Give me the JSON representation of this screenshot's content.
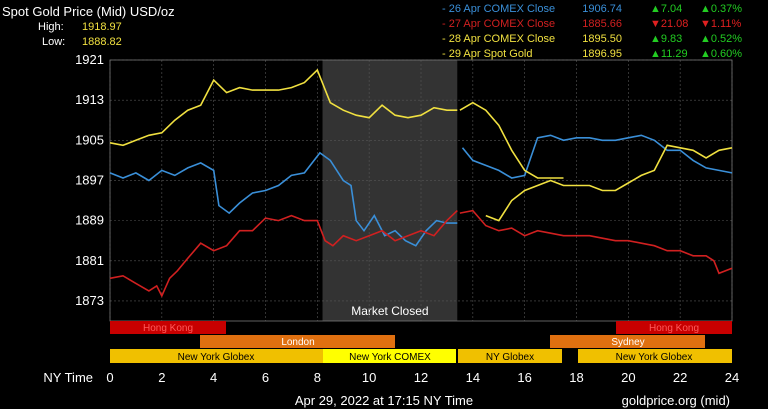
{
  "header": {
    "title": "Spot Gold Price (Mid) USD/oz",
    "high_label": "High:",
    "high_value": "1918.97",
    "low_label": "Low:",
    "low_value": "1888.82"
  },
  "legend": [
    {
      "label": "- 26 Apr COMEX Close",
      "value": "1906.74",
      "change": "7.04",
      "pct": "0.37%",
      "dir": "up",
      "color": "#3a8fd8"
    },
    {
      "label": "- 27 Apr COMEX Close",
      "value": "1885.66",
      "change": "21.08",
      "pct": "1.11%",
      "dir": "down",
      "color": "#d02020"
    },
    {
      "label": "- 28 Apr COMEX Close",
      "value": "1895.50",
      "change": "9.83",
      "pct": "0.52%",
      "dir": "up",
      "color": "#f0e040"
    },
    {
      "label": "- 29 Apr Spot Gold",
      "value": "1896.95",
      "change": "11.29",
      "pct": "0.60%",
      "dir": "up",
      "color": "#f0e040"
    }
  ],
  "sessions": {
    "hong_kong_1": "Hong Kong",
    "hong_kong_2": "Hong Kong",
    "london": "London",
    "sydney": "Sydney",
    "ny_globex_1": "New York Globex",
    "ny_comex": "New York COMEX",
    "ny_globex_2": "NY Globex",
    "ny_globex_3": "New York Globex"
  },
  "market_closed": "Market Closed",
  "footer": {
    "timestamp": "Apr 29, 2022 at 17:15 NY Time",
    "source": "goldprice.org (mid)"
  },
  "colors": {
    "up": "#22cc22",
    "down": "#e02020",
    "closed_band": "#333333",
    "grid": "#555555"
  },
  "chart_data": {
    "type": "line",
    "xlabel": "NY Time",
    "x_ticks": [
      0,
      2,
      4,
      6,
      8,
      10,
      12,
      14,
      16,
      18,
      20,
      22,
      24
    ],
    "y_ticks": [
      1873,
      1881,
      1889,
      1897,
      1905,
      1913,
      1921
    ],
    "xlim": [
      0,
      24
    ],
    "ylim": [
      1869,
      1921
    ],
    "market_closed_range": [
      8.2,
      13.4
    ],
    "series": [
      {
        "name": "26 Apr COMEX Close",
        "color": "#3a8fd8",
        "segments": [
          [
            [
              0,
              1898.5
            ],
            [
              0.5,
              1897.5
            ],
            [
              1,
              1898.5
            ],
            [
              1.5,
              1897
            ],
            [
              2,
              1899
            ],
            [
              2.5,
              1898
            ],
            [
              3,
              1899.5
            ],
            [
              3.5,
              1900.5
            ],
            [
              4,
              1899
            ],
            [
              4.2,
              1892
            ],
            [
              4.6,
              1890.5
            ],
            [
              5,
              1892.5
            ],
            [
              5.5,
              1894.5
            ],
            [
              6,
              1895
            ],
            [
              6.5,
              1896
            ],
            [
              7,
              1898
            ],
            [
              7.5,
              1898.5
            ],
            [
              8.1,
              1902.5
            ],
            [
              8.5,
              1901
            ],
            [
              9,
              1897
            ],
            [
              9.3,
              1896
            ],
            [
              9.5,
              1889
            ],
            [
              9.8,
              1887
            ],
            [
              10.2,
              1890
            ],
            [
              10.6,
              1886
            ],
            [
              11,
              1887
            ],
            [
              11.4,
              1885
            ],
            [
              11.8,
              1884
            ],
            [
              12.2,
              1887
            ],
            [
              12.6,
              1889
            ],
            [
              13,
              1888.5
            ],
            [
              13.4,
              1888.5
            ]
          ],
          [
            [
              13.6,
              1903.5
            ],
            [
              14,
              1901
            ],
            [
              14.5,
              1900
            ],
            [
              15,
              1899
            ],
            [
              15.5,
              1897.5
            ],
            [
              16,
              1898
            ],
            [
              16.2,
              1901
            ],
            [
              16.5,
              1905.5
            ],
            [
              17,
              1906
            ],
            [
              17.5,
              1905
            ],
            [
              18,
              1905.5
            ],
            [
              18.5,
              1905.5
            ],
            [
              19,
              1905
            ],
            [
              19.5,
              1905
            ],
            [
              20,
              1905.5
            ],
            [
              20.5,
              1906
            ],
            [
              21,
              1905
            ],
            [
              21.5,
              1903
            ],
            [
              22,
              1903
            ],
            [
              22.5,
              1901
            ],
            [
              23,
              1899.5
            ],
            [
              23.5,
              1899
            ],
            [
              24,
              1898.5
            ]
          ]
        ]
      },
      {
        "name": "27 Apr COMEX Close",
        "color": "#d02020",
        "segments": [
          [
            [
              0,
              1877.5
            ],
            [
              0.5,
              1878
            ],
            [
              1,
              1876.5
            ],
            [
              1.5,
              1875
            ],
            [
              1.8,
              1876
            ],
            [
              2,
              1874
            ],
            [
              2.3,
              1877.5
            ],
            [
              2.6,
              1879
            ],
            [
              3,
              1881.5
            ],
            [
              3.5,
              1884.5
            ],
            [
              4,
              1883
            ],
            [
              4.5,
              1884
            ],
            [
              5,
              1887
            ],
            [
              5.5,
              1887
            ],
            [
              6,
              1889.5
            ],
            [
              6.5,
              1889
            ],
            [
              7,
              1890
            ],
            [
              7.5,
              1889
            ],
            [
              8,
              1889
            ],
            [
              8.3,
              1885
            ],
            [
              8.6,
              1884
            ],
            [
              9,
              1886
            ],
            [
              9.5,
              1885
            ],
            [
              10,
              1886
            ],
            [
              10.5,
              1887
            ],
            [
              11,
              1885
            ],
            [
              11.5,
              1886
            ],
            [
              12,
              1887
            ],
            [
              12.5,
              1886
            ],
            [
              13,
              1889
            ],
            [
              13.4,
              1891
            ]
          ],
          [
            [
              13.5,
              1890.5
            ],
            [
              14,
              1891
            ],
            [
              14.5,
              1888
            ],
            [
              15,
              1887
            ],
            [
              15.5,
              1887.5
            ],
            [
              16,
              1886
            ],
            [
              16.5,
              1887
            ],
            [
              17,
              1886.5
            ],
            [
              17.5,
              1886
            ],
            [
              18,
              1886
            ],
            [
              18.5,
              1886
            ],
            [
              19,
              1885.5
            ],
            [
              19.5,
              1885
            ],
            [
              20,
              1885
            ],
            [
              20.5,
              1884.5
            ],
            [
              21,
              1884
            ],
            [
              21.5,
              1883
            ],
            [
              22,
              1883
            ],
            [
              22.5,
              1882
            ],
            [
              23,
              1882
            ],
            [
              23.3,
              1881
            ],
            [
              23.5,
              1878.5
            ],
            [
              24,
              1879.5
            ]
          ]
        ]
      },
      {
        "name": "28 Apr COMEX Close",
        "color": "#f0e040",
        "segments": [
          [
            [
              0,
              1904.5
            ],
            [
              0.5,
              1904
            ],
            [
              1,
              1905
            ],
            [
              1.5,
              1906
            ],
            [
              2,
              1906.5
            ],
            [
              2.5,
              1909
            ],
            [
              3,
              1911
            ],
            [
              3.5,
              1912
            ],
            [
              4,
              1917
            ],
            [
              4.5,
              1914.5
            ],
            [
              5,
              1915.5
            ],
            [
              5.5,
              1915
            ],
            [
              6,
              1915
            ],
            [
              6.5,
              1915
            ],
            [
              7,
              1915.5
            ],
            [
              7.5,
              1916.5
            ],
            [
              8,
              1919
            ],
            [
              8.5,
              1912.5
            ],
            [
              9,
              1911
            ],
            [
              9.5,
              1910
            ],
            [
              10,
              1909.5
            ],
            [
              10.5,
              1912
            ],
            [
              11,
              1910
            ],
            [
              11.5,
              1909.5
            ],
            [
              12,
              1910
            ],
            [
              12.5,
              1911.5
            ],
            [
              13,
              1911
            ],
            [
              13.4,
              1911
            ]
          ],
          [
            [
              13.5,
              1911
            ],
            [
              14,
              1912.5
            ],
            [
              14.5,
              1911
            ],
            [
              15,
              1908
            ],
            [
              15.5,
              1903
            ],
            [
              16,
              1899
            ],
            [
              16.5,
              1897.5
            ],
            [
              17,
              1897.5
            ],
            [
              17.5,
              1897.5
            ]
          ],
          [
            [
              14.5,
              1890
            ],
            [
              15,
              1889
            ],
            [
              15.5,
              1893
            ],
            [
              16,
              1895
            ],
            [
              16.5,
              1896
            ],
            [
              17,
              1897
            ],
            [
              17.5,
              1896
            ],
            [
              18,
              1896
            ],
            [
              18.5,
              1896
            ],
            [
              19,
              1895
            ],
            [
              19.5,
              1895
            ],
            [
              20,
              1896.5
            ],
            [
              20.5,
              1898
            ],
            [
              21,
              1899
            ],
            [
              21.5,
              1904
            ],
            [
              22,
              1903.5
            ],
            [
              22.5,
              1903
            ],
            [
              23,
              1901.5
            ],
            [
              23.5,
              1903
            ],
            [
              24,
              1903.5
            ]
          ]
        ]
      },
      {
        "name": "29 Apr Spot Gold",
        "color": "#f0e040",
        "segments": []
      }
    ]
  }
}
